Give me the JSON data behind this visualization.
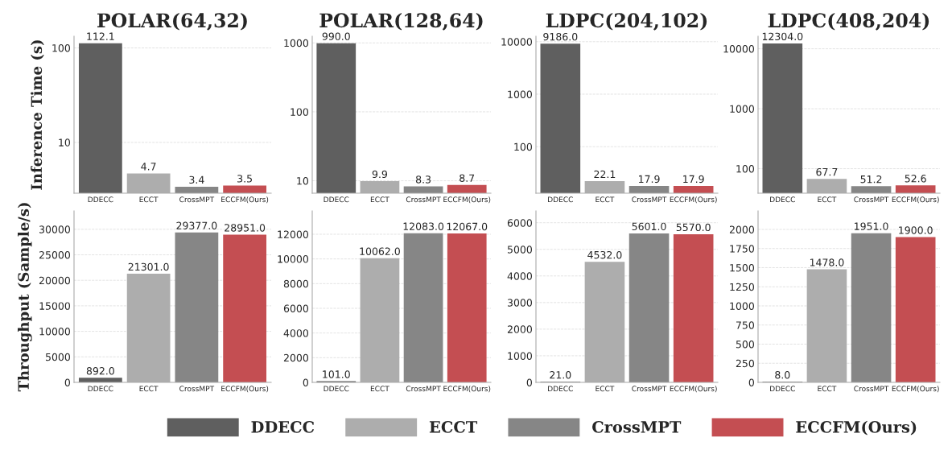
{
  "chart_data": [
    {
      "type": "bar",
      "title": "POLAR(64,32)",
      "ylabel": "Inference Time (s)",
      "categories": [
        "DDECC",
        "ECCT",
        "CrossMPT",
        "ECCFM(Ours)"
      ],
      "values": [
        112.1,
        4.7,
        3.4,
        3.5
      ],
      "value_labels": [
        "112.1",
        "4.7",
        "3.4",
        "3.5"
      ],
      "colors": [
        "#5f5f5f",
        "#adadad",
        "#868686",
        "#c44e52"
      ],
      "log": "y",
      "ylim": [
        2.9,
        133
      ],
      "yticks": [
        10,
        100
      ],
      "grid": "y"
    },
    {
      "type": "bar",
      "title": "POLAR(128,64)",
      "categories": [
        "DDECC",
        "ECCT",
        "CrossMPT",
        "ECCFM(Ours)"
      ],
      "values": [
        990.0,
        9.9,
        8.3,
        8.7
      ],
      "value_labels": [
        "990.0",
        "9.9",
        "8.3",
        "8.7"
      ],
      "colors": [
        "#5f5f5f",
        "#adadad",
        "#868686",
        "#c44e52"
      ],
      "log": "y",
      "ylim": [
        6.6,
        1250
      ],
      "yticks": [
        10,
        100,
        1000
      ],
      "grid": "y"
    },
    {
      "type": "bar",
      "title": "LDPC(204,102)",
      "categories": [
        "DDECC",
        "ECCT",
        "CrossMPT",
        "ECCFM(Ours)"
      ],
      "values": [
        9186.0,
        22.1,
        17.9,
        17.9
      ],
      "value_labels": [
        "9186.0",
        "22.1",
        "17.9",
        "17.9"
      ],
      "colors": [
        "#5f5f5f",
        "#adadad",
        "#868686",
        "#c44e52"
      ],
      "log": "y",
      "ylim": [
        13,
        12700
      ],
      "yticks": [
        100,
        1000,
        10000
      ],
      "grid": "y"
    },
    {
      "type": "bar",
      "title": "LDPC(408,204)",
      "categories": [
        "DDECC",
        "ECCT",
        "CrossMPT",
        "ECCFM(Ours)"
      ],
      "values": [
        12304.0,
        67.7,
        51.2,
        52.6
      ],
      "value_labels": [
        "12304.0",
        "67.7",
        "51.2",
        "52.6"
      ],
      "colors": [
        "#5f5f5f",
        "#adadad",
        "#868686",
        "#c44e52"
      ],
      "log": "y",
      "ylim": [
        39,
        16200
      ],
      "yticks": [
        100,
        1000,
        10000
      ],
      "grid": "y"
    },
    {
      "type": "bar",
      "ylabel": "Throughput (Sample/s)",
      "categories": [
        "DDECC",
        "ECCT",
        "CrossMPT",
        "ECCFM(Ours)"
      ],
      "values": [
        892.0,
        21301.0,
        29377.0,
        28951.0
      ],
      "value_labels": [
        "892.0",
        "21301.0",
        "29377.0",
        "28951.0"
      ],
      "colors": [
        "#5f5f5f",
        "#adadad",
        "#868686",
        "#c44e52"
      ],
      "ylim": [
        0,
        33600
      ],
      "yticks": [
        0,
        5000,
        10000,
        15000,
        20000,
        25000,
        30000
      ],
      "grid": "y"
    },
    {
      "type": "bar",
      "categories": [
        "DDECC",
        "ECCT",
        "CrossMPT",
        "ECCFM(Ours)"
      ],
      "values": [
        101.0,
        10062.0,
        12083.0,
        12067.0
      ],
      "value_labels": [
        "101.0",
        "10062.0",
        "12083.0",
        "12067.0"
      ],
      "colors": [
        "#5f5f5f",
        "#adadad",
        "#868686",
        "#c44e52"
      ],
      "ylim": [
        0,
        13890
      ],
      "yticks": [
        0,
        2000,
        4000,
        6000,
        8000,
        10000,
        12000
      ],
      "grid": "y"
    },
    {
      "type": "bar",
      "categories": [
        "DDECC",
        "ECCT",
        "CrossMPT",
        "ECCFM(Ours)"
      ],
      "values": [
        21.0,
        4532.0,
        5601.0,
        5570.0
      ],
      "value_labels": [
        "21.0",
        "4532.0",
        "5601.0",
        "5570.0"
      ],
      "colors": [
        "#5f5f5f",
        "#adadad",
        "#868686",
        "#c44e52"
      ],
      "ylim": [
        0,
        6445
      ],
      "yticks": [
        0,
        1000,
        2000,
        3000,
        4000,
        5000,
        6000
      ],
      "grid": "y"
    },
    {
      "type": "bar",
      "categories": [
        "DDECC",
        "ECCT",
        "CrossMPT",
        "ECCFM(Ours)"
      ],
      "values": [
        8.0,
        1478.0,
        1951.0,
        1900.0
      ],
      "value_labels": [
        "8.0",
        "1478.0",
        "1951.0",
        "1900.0"
      ],
      "colors": [
        "#5f5f5f",
        "#adadad",
        "#868686",
        "#c44e52"
      ],
      "ylim": [
        0,
        2242
      ],
      "yticks": [
        0,
        250,
        500,
        750,
        1000,
        1250,
        1500,
        1750,
        2000
      ],
      "grid": "y"
    }
  ]
}
